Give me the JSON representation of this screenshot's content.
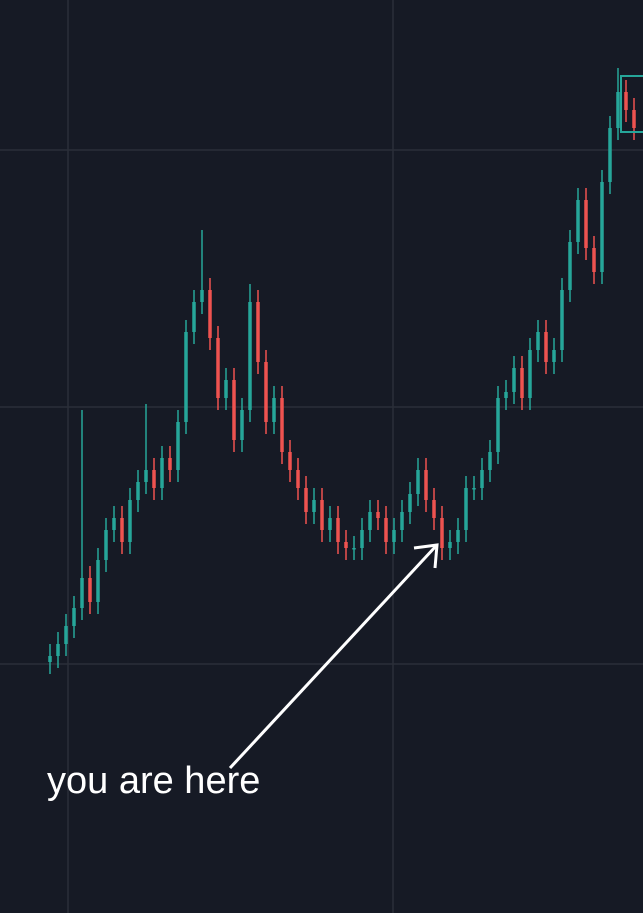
{
  "chart_data": {
    "type": "candlestick",
    "annotation": "you are here",
    "up_color": "#26a69a",
    "down_color": "#ef5350",
    "ylim": [
      0,
      110
    ],
    "open": [
      3,
      4,
      6,
      9,
      12,
      17,
      13,
      20,
      25,
      27,
      23,
      30,
      33,
      35,
      32,
      37,
      35,
      43,
      58,
      63,
      65,
      57,
      47,
      50,
      40,
      45,
      63,
      53,
      43,
      47,
      38,
      35,
      32,
      28,
      30,
      25,
      27,
      23,
      22,
      22,
      25,
      28,
      27,
      23,
      25,
      28,
      31,
      35,
      30,
      27,
      22,
      23,
      25,
      32,
      32,
      35,
      38,
      47,
      48,
      52,
      47,
      55,
      58,
      53,
      55,
      65,
      73,
      80,
      72,
      68,
      83,
      92,
      98,
      95
    ],
    "high": [
      6,
      8,
      11,
      14,
      45,
      19,
      22,
      27,
      29,
      29,
      32,
      35,
      46,
      37,
      39,
      39,
      45,
      60,
      65,
      75,
      67,
      59,
      52,
      52,
      47,
      66,
      65,
      55,
      49,
      49,
      40,
      37,
      34,
      32,
      32,
      29,
      29,
      25,
      24,
      27,
      30,
      30,
      29,
      27,
      30,
      33,
      37,
      37,
      32,
      29,
      25,
      27,
      34,
      34,
      37,
      40,
      49,
      50,
      54,
      54,
      57,
      60,
      60,
      57,
      67,
      75,
      82,
      82,
      74,
      85,
      94,
      102,
      100,
      97
    ],
    "low": [
      1,
      2,
      4,
      7,
      10,
      11,
      11,
      18,
      23,
      21,
      21,
      28,
      31,
      30,
      30,
      33,
      33,
      41,
      56,
      61,
      55,
      45,
      45,
      38,
      38,
      43,
      51,
      41,
      41,
      36,
      33,
      30,
      26,
      26,
      23,
      23,
      21,
      20,
      20,
      20,
      23,
      25,
      21,
      21,
      23,
      26,
      29,
      28,
      25,
      20,
      20,
      21,
      23,
      30,
      30,
      33,
      36,
      45,
      46,
      45,
      45,
      53,
      51,
      51,
      53,
      63,
      71,
      70,
      66,
      66,
      81,
      90,
      93,
      90
    ],
    "close": [
      4,
      6,
      9,
      12,
      17,
      13,
      20,
      25,
      27,
      23,
      30,
      33,
      35,
      32,
      37,
      35,
      43,
      58,
      63,
      65,
      57,
      47,
      50,
      40,
      45,
      63,
      53,
      43,
      47,
      38,
      35,
      32,
      28,
      30,
      25,
      27,
      23,
      22,
      22,
      25,
      28,
      27,
      23,
      25,
      28,
      31,
      35,
      30,
      27,
      22,
      23,
      25,
      32,
      32,
      35,
      38,
      47,
      48,
      52,
      47,
      55,
      58,
      53,
      55,
      65,
      73,
      80,
      72,
      68,
      83,
      92,
      98,
      95,
      92
    ]
  }
}
